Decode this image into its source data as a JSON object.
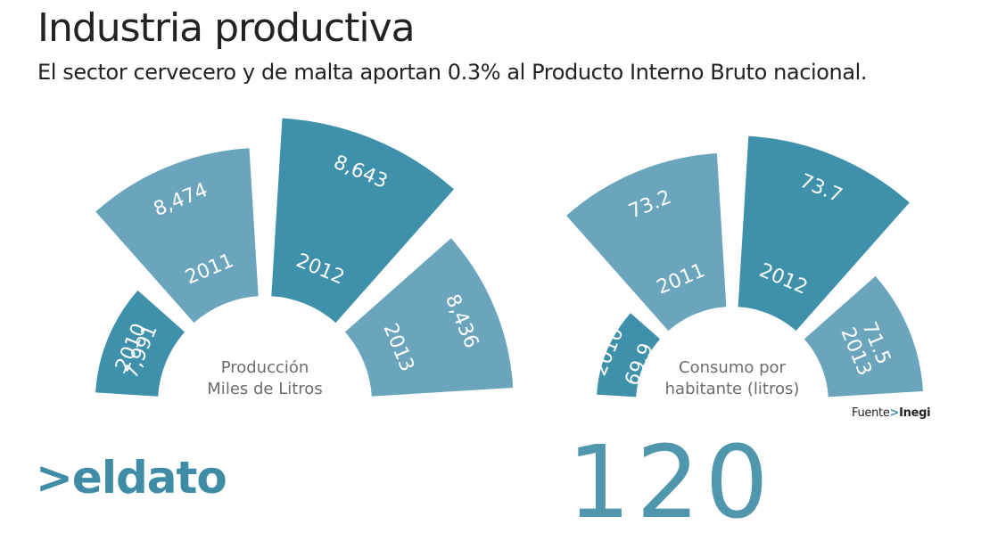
{
  "title": "Industria productiva",
  "subtitle": "El sector cervecero y de malta aportan 0.3% al Producto Interno Bruto nacional.",
  "source": {
    "prefix": "Fuente",
    "arrow": ">",
    "name": "Inegi"
  },
  "footer": {
    "brand_arrow": ">",
    "brand": "eldato",
    "big_number": "120"
  },
  "colors": {
    "dark": "#3f90aa",
    "light": "#6ba5bd"
  },
  "chart_data": [
    {
      "type": "bar",
      "chart_style": "radial-bar",
      "categories": [
        "2010",
        "2011",
        "2012",
        "2013"
      ],
      "values": [
        7991,
        8474,
        8643,
        8436
      ],
      "value_labels": [
        "7,991",
        "8,474",
        "8,643",
        "8,436"
      ],
      "center_label": [
        "Producción",
        "Miles de Litros"
      ]
    },
    {
      "type": "bar",
      "chart_style": "radial-bar",
      "categories": [
        "2010",
        "2011",
        "2012",
        "2013"
      ],
      "values": [
        69.9,
        73.2,
        73.7,
        71.5
      ],
      "value_labels": [
        "69.9",
        "73.2",
        "73.7",
        "71.5"
      ],
      "center_label": [
        "Consumo por",
        "habitante (litros)"
      ]
    }
  ]
}
